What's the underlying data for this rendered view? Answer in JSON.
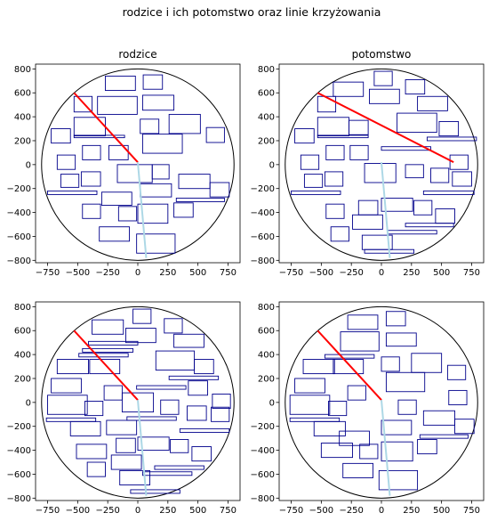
{
  "title": "rodzice i ich potomstwo oraz linie krzyżowania",
  "colors": {
    "rect": "#00008b",
    "circle": "#000000",
    "cut_line_1": "#ff0000",
    "cut_line_2": "#add8e6"
  },
  "chart_data": [
    {
      "type": "scatter",
      "title": "rodzice",
      "xlim": [
        -850,
        850
      ],
      "ylim": [
        -820,
        840
      ],
      "xticks": [
        -750,
        -500,
        -250,
        0,
        250,
        500,
        750
      ],
      "yticks": [
        -800,
        -600,
        -400,
        -200,
        0,
        200,
        400,
        600,
        800
      ],
      "circle": {
        "cx": 0,
        "cy": 0,
        "r": 800
      },
      "lines": [
        {
          "name": "red",
          "x": [
            -530,
            0
          ],
          "y": [
            600,
            20
          ]
        },
        {
          "name": "lightblue",
          "x": [
            0,
            70
          ],
          "y": [
            20,
            -780
          ]
        }
      ],
      "rectangles": [
        {
          "x": -270,
          "y": 620,
          "w": 250,
          "h": 120
        },
        {
          "x": 45,
          "y": 630,
          "w": 160,
          "h": 120
        },
        {
          "x": -530,
          "y": 440,
          "w": 150,
          "h": 130
        },
        {
          "x": -335,
          "y": 420,
          "w": 330,
          "h": 150
        },
        {
          "x": 40,
          "y": 455,
          "w": 260,
          "h": 125
        },
        {
          "x": -530,
          "y": 240,
          "w": 260,
          "h": 155
        },
        {
          "x": -530,
          "y": 225,
          "w": 420,
          "h": 20
        },
        {
          "x": 20,
          "y": 260,
          "w": 155,
          "h": 120
        },
        {
          "x": 260,
          "y": 260,
          "w": 260,
          "h": 160
        },
        {
          "x": -720,
          "y": 180,
          "w": 160,
          "h": 120
        },
        {
          "x": 40,
          "y": 95,
          "w": 330,
          "h": 160
        },
        {
          "x": 570,
          "y": 185,
          "w": 150,
          "h": 125
        },
        {
          "x": -460,
          "y": 40,
          "w": 150,
          "h": 120
        },
        {
          "x": -240,
          "y": 40,
          "w": 160,
          "h": 120
        },
        {
          "x": -670,
          "y": -40,
          "w": 150,
          "h": 120
        },
        {
          "x": -470,
          "y": -180,
          "w": 160,
          "h": 120
        },
        {
          "x": -640,
          "y": -190,
          "w": 150,
          "h": 110
        },
        {
          "x": -170,
          "y": -150,
          "w": 290,
          "h": 150
        },
        {
          "x": 120,
          "y": -120,
          "w": 140,
          "h": 120
        },
        {
          "x": 340,
          "y": -200,
          "w": 260,
          "h": 120
        },
        {
          "x": 600,
          "y": -270,
          "w": 160,
          "h": 120
        },
        {
          "x": -750,
          "y": -250,
          "w": 410,
          "h": 30
        },
        {
          "x": 20,
          "y": -270,
          "w": 260,
          "h": 110
        },
        {
          "x": -300,
          "y": -340,
          "w": 250,
          "h": 110
        },
        {
          "x": 320,
          "y": -310,
          "w": 400,
          "h": 30
        },
        {
          "x": -460,
          "y": -450,
          "w": 150,
          "h": 120
        },
        {
          "x": -160,
          "y": -470,
          "w": 150,
          "h": 120
        },
        {
          "x": 0,
          "y": -490,
          "w": 250,
          "h": 160
        },
        {
          "x": 300,
          "y": -440,
          "w": 160,
          "h": 120
        },
        {
          "x": -320,
          "y": -640,
          "w": 250,
          "h": 120
        },
        {
          "x": -10,
          "y": -740,
          "w": 320,
          "h": 160
        }
      ]
    },
    {
      "type": "scatter",
      "title": "potomstwo",
      "xlim": [
        -850,
        850
      ],
      "ylim": [
        -820,
        840
      ],
      "xticks": [
        -750,
        -500,
        -250,
        0,
        250,
        500,
        750
      ],
      "yticks": [
        -800,
        -600,
        -400,
        -200,
        0,
        200,
        400,
        600,
        800
      ],
      "circle": {
        "cx": 0,
        "cy": 0,
        "r": 800
      },
      "lines": [
        {
          "name": "red",
          "x": [
            -530,
            600
          ],
          "y": [
            600,
            20
          ]
        },
        {
          "name": "lightblue",
          "x": [
            0,
            70
          ],
          "y": [
            20,
            -780
          ]
        }
      ],
      "rectangles": [
        {
          "x": -60,
          "y": 660,
          "w": 150,
          "h": 120
        },
        {
          "x": -400,
          "y": 570,
          "w": 250,
          "h": 120
        },
        {
          "x": 200,
          "y": 590,
          "w": 160,
          "h": 120
        },
        {
          "x": -530,
          "y": 440,
          "w": 150,
          "h": 130
        },
        {
          "x": -100,
          "y": 510,
          "w": 250,
          "h": 120
        },
        {
          "x": 300,
          "y": 450,
          "w": 250,
          "h": 120
        },
        {
          "x": -530,
          "y": 240,
          "w": 260,
          "h": 155
        },
        {
          "x": -530,
          "y": 225,
          "w": 420,
          "h": 20
        },
        {
          "x": -270,
          "y": 250,
          "w": 160,
          "h": 120
        },
        {
          "x": 130,
          "y": 270,
          "w": 330,
          "h": 160
        },
        {
          "x": 480,
          "y": 240,
          "w": 160,
          "h": 120
        },
        {
          "x": -720,
          "y": 180,
          "w": 160,
          "h": 120
        },
        {
          "x": 380,
          "y": 200,
          "w": 410,
          "h": 30
        },
        {
          "x": 0,
          "y": 120,
          "w": 410,
          "h": 30
        },
        {
          "x": -460,
          "y": 40,
          "w": 150,
          "h": 120
        },
        {
          "x": -260,
          "y": 40,
          "w": 150,
          "h": 120
        },
        {
          "x": -670,
          "y": -40,
          "w": 150,
          "h": 120
        },
        {
          "x": 570,
          "y": -40,
          "w": 150,
          "h": 120
        },
        {
          "x": -470,
          "y": -180,
          "w": 150,
          "h": 120
        },
        {
          "x": -640,
          "y": -190,
          "w": 150,
          "h": 110
        },
        {
          "x": -140,
          "y": -150,
          "w": 260,
          "h": 160
        },
        {
          "x": 200,
          "y": -110,
          "w": 150,
          "h": 110
        },
        {
          "x": 410,
          "y": -150,
          "w": 150,
          "h": 120
        },
        {
          "x": 590,
          "y": -180,
          "w": 160,
          "h": 120
        },
        {
          "x": -750,
          "y": -250,
          "w": 410,
          "h": 30
        },
        {
          "x": 350,
          "y": -250,
          "w": 420,
          "h": 30
        },
        {
          "x": 0,
          "y": -390,
          "w": 260,
          "h": 110
        },
        {
          "x": -190,
          "y": -420,
          "w": 160,
          "h": 120
        },
        {
          "x": -460,
          "y": -450,
          "w": 150,
          "h": 120
        },
        {
          "x": 270,
          "y": -420,
          "w": 150,
          "h": 120
        },
        {
          "x": 450,
          "y": -490,
          "w": 160,
          "h": 120
        },
        {
          "x": -240,
          "y": -540,
          "w": 250,
          "h": 120
        },
        {
          "x": 200,
          "y": -520,
          "w": 400,
          "h": 30
        },
        {
          "x": -420,
          "y": -640,
          "w": 150,
          "h": 120
        },
        {
          "x": 50,
          "y": -580,
          "w": 410,
          "h": 30
        },
        {
          "x": -160,
          "y": -710,
          "w": 250,
          "h": 120
        },
        {
          "x": -140,
          "y": -740,
          "w": 410,
          "h": 30
        }
      ]
    },
    {
      "type": "scatter",
      "title": "",
      "xlim": [
        -850,
        850
      ],
      "ylim": [
        -820,
        840
      ],
      "xticks": [
        -750,
        -500,
        -250,
        0,
        250,
        500,
        750
      ],
      "yticks": [
        -800,
        -600,
        -400,
        -200,
        0,
        200,
        400,
        600,
        800
      ],
      "circle": {
        "cx": 0,
        "cy": 0,
        "r": 800
      },
      "lines": [
        {
          "name": "red",
          "x": [
            -530,
            0
          ],
          "y": [
            600,
            20
          ]
        },
        {
          "name": "lightblue",
          "x": [
            0,
            70
          ],
          "y": [
            20,
            -780
          ]
        }
      ],
      "rectangles": [
        {
          "x": -380,
          "y": 570,
          "w": 260,
          "h": 120
        },
        {
          "x": -40,
          "y": 660,
          "w": 150,
          "h": 120
        },
        {
          "x": 220,
          "y": 580,
          "w": 150,
          "h": 120
        },
        {
          "x": -410,
          "y": 480,
          "w": 410,
          "h": 30
        },
        {
          "x": -100,
          "y": 500,
          "w": 250,
          "h": 120
        },
        {
          "x": 300,
          "y": 460,
          "w": 250,
          "h": 110
        },
        {
          "x": -460,
          "y": 420,
          "w": 420,
          "h": 30
        },
        {
          "x": -490,
          "y": 380,
          "w": 410,
          "h": 30
        },
        {
          "x": -670,
          "y": 240,
          "w": 260,
          "h": 120
        },
        {
          "x": -400,
          "y": 240,
          "w": 250,
          "h": 120
        },
        {
          "x": 150,
          "y": 270,
          "w": 320,
          "h": 160
        },
        {
          "x": 470,
          "y": 240,
          "w": 160,
          "h": 120
        },
        {
          "x": -720,
          "y": 80,
          "w": 250,
          "h": 120
        },
        {
          "x": 260,
          "y": 190,
          "w": 410,
          "h": 30
        },
        {
          "x": -10,
          "y": 110,
          "w": 410,
          "h": 30
        },
        {
          "x": 420,
          "y": 60,
          "w": 160,
          "h": 120
        },
        {
          "x": -280,
          "y": 20,
          "w": 150,
          "h": 120
        },
        {
          "x": -750,
          "y": -100,
          "w": 330,
          "h": 160
        },
        {
          "x": -440,
          "y": -110,
          "w": 150,
          "h": 120
        },
        {
          "x": -130,
          "y": -80,
          "w": 260,
          "h": 160
        },
        {
          "x": 190,
          "y": -100,
          "w": 150,
          "h": 120
        },
        {
          "x": 410,
          "y": -150,
          "w": 160,
          "h": 120
        },
        {
          "x": 620,
          "y": -50,
          "w": 150,
          "h": 120
        },
        {
          "x": 610,
          "y": -160,
          "w": 150,
          "h": 120
        },
        {
          "x": -760,
          "y": -160,
          "w": 410,
          "h": 30
        },
        {
          "x": -90,
          "y": -150,
          "w": 410,
          "h": 30
        },
        {
          "x": -560,
          "y": -280,
          "w": 250,
          "h": 120
        },
        {
          "x": -260,
          "y": -270,
          "w": 250,
          "h": 120
        },
        {
          "x": 350,
          "y": -250,
          "w": 410,
          "h": 30
        },
        {
          "x": 0,
          "y": -400,
          "w": 260,
          "h": 110
        },
        {
          "x": -180,
          "y": -420,
          "w": 160,
          "h": 120
        },
        {
          "x": 270,
          "y": -420,
          "w": 150,
          "h": 110
        },
        {
          "x": 450,
          "y": -490,
          "w": 160,
          "h": 120
        },
        {
          "x": -510,
          "y": -470,
          "w": 250,
          "h": 120
        },
        {
          "x": -220,
          "y": -560,
          "w": 250,
          "h": 120
        },
        {
          "x": 140,
          "y": -560,
          "w": 410,
          "h": 30
        },
        {
          "x": -420,
          "y": -620,
          "w": 150,
          "h": 120
        },
        {
          "x": 40,
          "y": -610,
          "w": 410,
          "h": 30
        },
        {
          "x": -150,
          "y": -690,
          "w": 250,
          "h": 120
        },
        {
          "x": -60,
          "y": -760,
          "w": 410,
          "h": 30
        }
      ]
    },
    {
      "type": "scatter",
      "title": "",
      "xlim": [
        -850,
        850
      ],
      "ylim": [
        -820,
        840
      ],
      "xticks": [
        -750,
        -500,
        -250,
        0,
        250,
        500,
        750
      ],
      "yticks": [
        -800,
        -600,
        -400,
        -200,
        0,
        200,
        400,
        600,
        800
      ],
      "circle": {
        "cx": 0,
        "cy": 0,
        "r": 800
      },
      "lines": [
        {
          "name": "red",
          "x": [
            -530,
            0
          ],
          "y": [
            600,
            20
          ]
        },
        {
          "name": "lightblue",
          "x": [
            0,
            70
          ],
          "y": [
            20,
            -780
          ]
        }
      ],
      "rectangles": [
        {
          "x": -280,
          "y": 610,
          "w": 250,
          "h": 120
        },
        {
          "x": 40,
          "y": 640,
          "w": 160,
          "h": 120
        },
        {
          "x": -340,
          "y": 430,
          "w": 320,
          "h": 160
        },
        {
          "x": 40,
          "y": 470,
          "w": 250,
          "h": 110
        },
        {
          "x": -470,
          "y": 370,
          "w": 410,
          "h": 30
        },
        {
          "x": -650,
          "y": 240,
          "w": 260,
          "h": 120
        },
        {
          "x": -400,
          "y": 240,
          "w": 250,
          "h": 120
        },
        {
          "x": 0,
          "y": 260,
          "w": 150,
          "h": 120
        },
        {
          "x": 250,
          "y": 250,
          "w": 250,
          "h": 160
        },
        {
          "x": 550,
          "y": 190,
          "w": 150,
          "h": 120
        },
        {
          "x": -720,
          "y": 80,
          "w": 250,
          "h": 120
        },
        {
          "x": 40,
          "y": 90,
          "w": 320,
          "h": 160
        },
        {
          "x": -280,
          "y": 20,
          "w": 150,
          "h": 120
        },
        {
          "x": 560,
          "y": -20,
          "w": 150,
          "h": 120
        },
        {
          "x": -760,
          "y": -100,
          "w": 330,
          "h": 160
        },
        {
          "x": -440,
          "y": -110,
          "w": 150,
          "h": 120
        },
        {
          "x": 140,
          "y": -100,
          "w": 150,
          "h": 120
        },
        {
          "x": 350,
          "y": -190,
          "w": 260,
          "h": 120
        },
        {
          "x": 610,
          "y": -260,
          "w": 160,
          "h": 120
        },
        {
          "x": -760,
          "y": -160,
          "w": 410,
          "h": 30
        },
        {
          "x": 0,
          "y": -270,
          "w": 250,
          "h": 120
        },
        {
          "x": -560,
          "y": -280,
          "w": 260,
          "h": 120
        },
        {
          "x": 320,
          "y": -300,
          "w": 400,
          "h": 30
        },
        {
          "x": -350,
          "y": -360,
          "w": 250,
          "h": 120
        },
        {
          "x": 300,
          "y": -430,
          "w": 160,
          "h": 120
        },
        {
          "x": -500,
          "y": -460,
          "w": 260,
          "h": 120
        },
        {
          "x": -180,
          "y": -470,
          "w": 150,
          "h": 120
        },
        {
          "x": 0,
          "y": -490,
          "w": 260,
          "h": 160
        },
        {
          "x": -320,
          "y": -630,
          "w": 250,
          "h": 120
        },
        {
          "x": -20,
          "y": -730,
          "w": 320,
          "h": 160
        }
      ]
    }
  ]
}
